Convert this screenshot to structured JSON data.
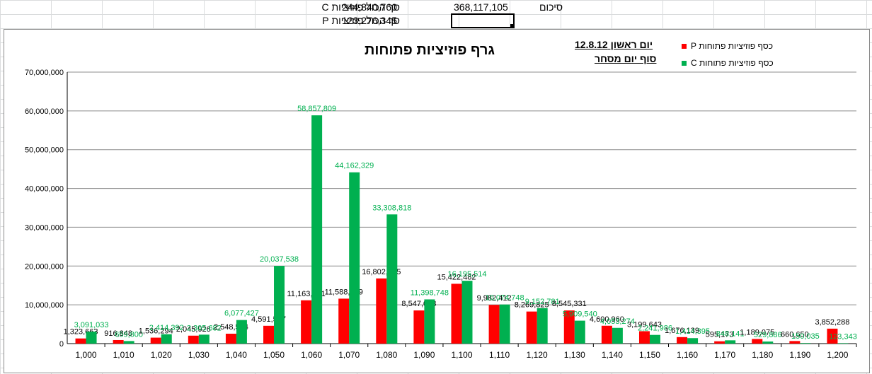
{
  "summary": {
    "c_total_label": "סך הכול פוזיציות C",
    "c_total_value": "244,840,760",
    "p_total_label": "סך הכול פוזיציות P",
    "p_total_value": "123,276,345",
    "grand_total_value": "368,117,105",
    "grand_total_label": "סיכום"
  },
  "notes": {
    "day": "יום ראשון 12.8.12",
    "session": "סוף יום מסחר"
  },
  "colors": {
    "p_series": "#ff0000",
    "c_series": "#00b050",
    "c_label": "#00b050"
  },
  "chart_data": {
    "type": "bar",
    "title": "גרף פוזיציות  פתוחות",
    "categories": [
      "1,000",
      "1,010",
      "1,020",
      "1,030",
      "1,040",
      "1,050",
      "1,060",
      "1,070",
      "1,080",
      "1,090",
      "1,100",
      "1,110",
      "1,120",
      "1,130",
      "1,140",
      "1,150",
      "1,160",
      "1,170",
      "1,180",
      "1,190",
      "1,200"
    ],
    "ylim": [
      0,
      70000000
    ],
    "yticks": [
      "0",
      "10,000,000",
      "20,000,000",
      "30,000,000",
      "40,000,000",
      "50,000,000",
      "60,000,000",
      "70,000,000"
    ],
    "grid": true,
    "legend_position": "top-right",
    "series": [
      {
        "name": "כסף פוזיציות  פתוחות P",
        "values": [
          1323663,
          916848,
          1536294,
          2045926,
          2548534,
          4591577,
          11163171,
          11588559,
          16802635,
          8547098,
          15422482,
          9982412,
          8269825,
          8545331,
          4600960,
          3199643,
          1676139,
          595173,
          1189075,
          660650,
          3852288
        ],
        "labels": [
          "1,323,663",
          "916,848",
          "1,536,294",
          "2,045,926",
          "2,548,534",
          "4,591,577",
          "11,163,171",
          "11,588,559",
          "16,802,635",
          "8,547,098",
          "15,422,482",
          "9,982,412",
          "8,269,825",
          "8,545,331",
          "4,600,960",
          "3,199,643",
          "1,676,139",
          "595,173",
          "1,189,075",
          "660,650",
          "3,852,288"
        ]
      },
      {
        "name": "כסף פוזיציות  פתוחות C",
        "values": [
          3091033,
          659800,
          2414392,
          2305682,
          6077427,
          20037538,
          58857809,
          44162329,
          33308818,
          11398748,
          16195514,
          10074748,
          9152781,
          5909540,
          4053274,
          2241986,
          1414395,
          848141,
          529886,
          150035,
          123343
        ],
        "labels": [
          "3,091,033",
          "659,800",
          "2,414,392",
          "2,305,682",
          "6,077,427",
          "20,037,538",
          "58,857,809",
          "44,162,329",
          "33,308,818",
          "11,398,748",
          "16,195,514",
          "10,074,748",
          "9,152,781",
          "5,909,540",
          "4,053,274",
          "2,241,986",
          "1,414,395",
          "848,141",
          "529,886",
          "150,035",
          "123,343"
        ]
      }
    ]
  }
}
